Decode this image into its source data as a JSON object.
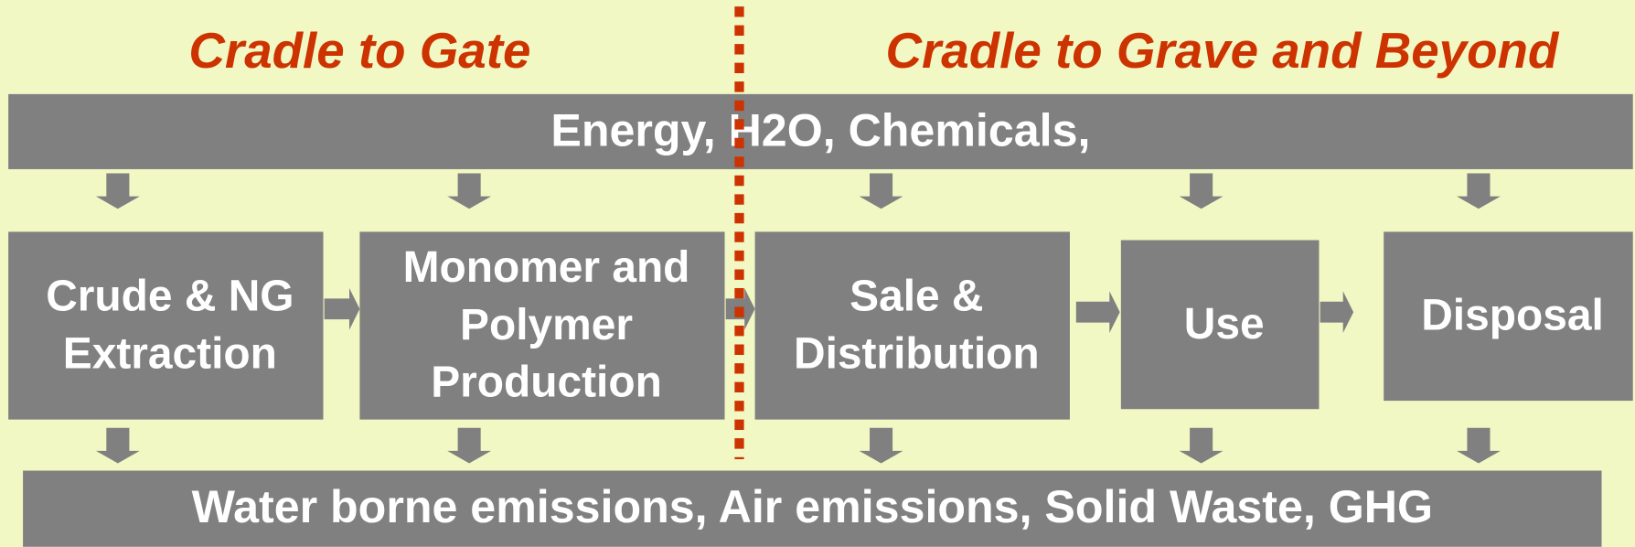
{
  "titles": [
    "Cradle to Gate",
    "Cradle to Grave and Beyond"
  ],
  "inputs": "Energy, H2O, Chemicals,",
  "stages": [
    {
      "lines": [
        "Crude & NG",
        "Extraction"
      ]
    },
    {
      "lines": [
        "Monomer and",
        "Polymer",
        "Production"
      ]
    },
    {
      "lines": [
        "Sale &",
        "Distribution"
      ]
    },
    {
      "lines": [
        "Use"
      ]
    },
    {
      "lines": [
        "Disposal"
      ]
    }
  ],
  "outputs": "Water borne emissions, Air emissions, Solid Waste, GHG"
}
